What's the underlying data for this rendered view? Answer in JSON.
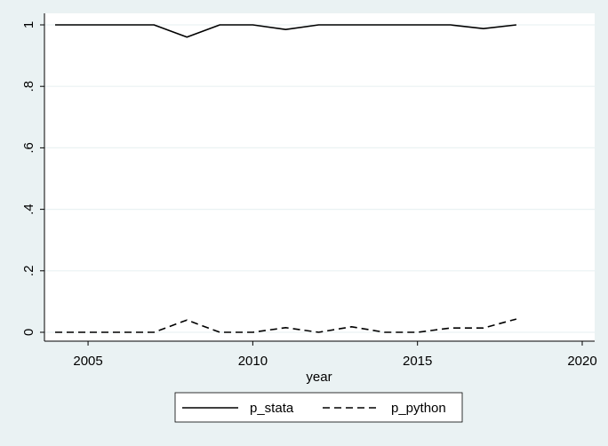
{
  "chart_data": {
    "type": "line",
    "title": "",
    "xlabel": "year",
    "ylabel": "",
    "xlim": [
      2004,
      2020
    ],
    "ylim": [
      0,
      1
    ],
    "x_ticks": [
      2005,
      2010,
      2015,
      2020
    ],
    "y_ticks": [
      0,
      0.2,
      0.4,
      0.6,
      0.8,
      1
    ],
    "y_tick_labels": [
      "0",
      ".2",
      ".4",
      ".6",
      ".8",
      "1"
    ],
    "grid": true,
    "legend_position": "bottom",
    "x": [
      2004,
      2005,
      2006,
      2007,
      2008,
      2009,
      2010,
      2011,
      2012,
      2013,
      2014,
      2015,
      2016,
      2017,
      2018
    ],
    "series": [
      {
        "name": "p_stata",
        "line_style": "solid",
        "color": "#000000",
        "values": [
          1,
          1,
          1,
          1,
          0.96,
          1,
          1,
          0.985,
          1,
          1,
          1,
          1,
          1,
          0.988,
          1
        ]
      },
      {
        "name": "p_python",
        "line_style": "dashed",
        "color": "#000000",
        "values": [
          0,
          0,
          0,
          0,
          0.04,
          0,
          0,
          0.015,
          0,
          0.018,
          0,
          0,
          0.014,
          0.014,
          0.043
        ]
      }
    ]
  },
  "colors": {
    "background": "#eaf2f3",
    "plot_area": "#ffffff",
    "gridline": "#eaf2f3",
    "axis": "#000000"
  }
}
